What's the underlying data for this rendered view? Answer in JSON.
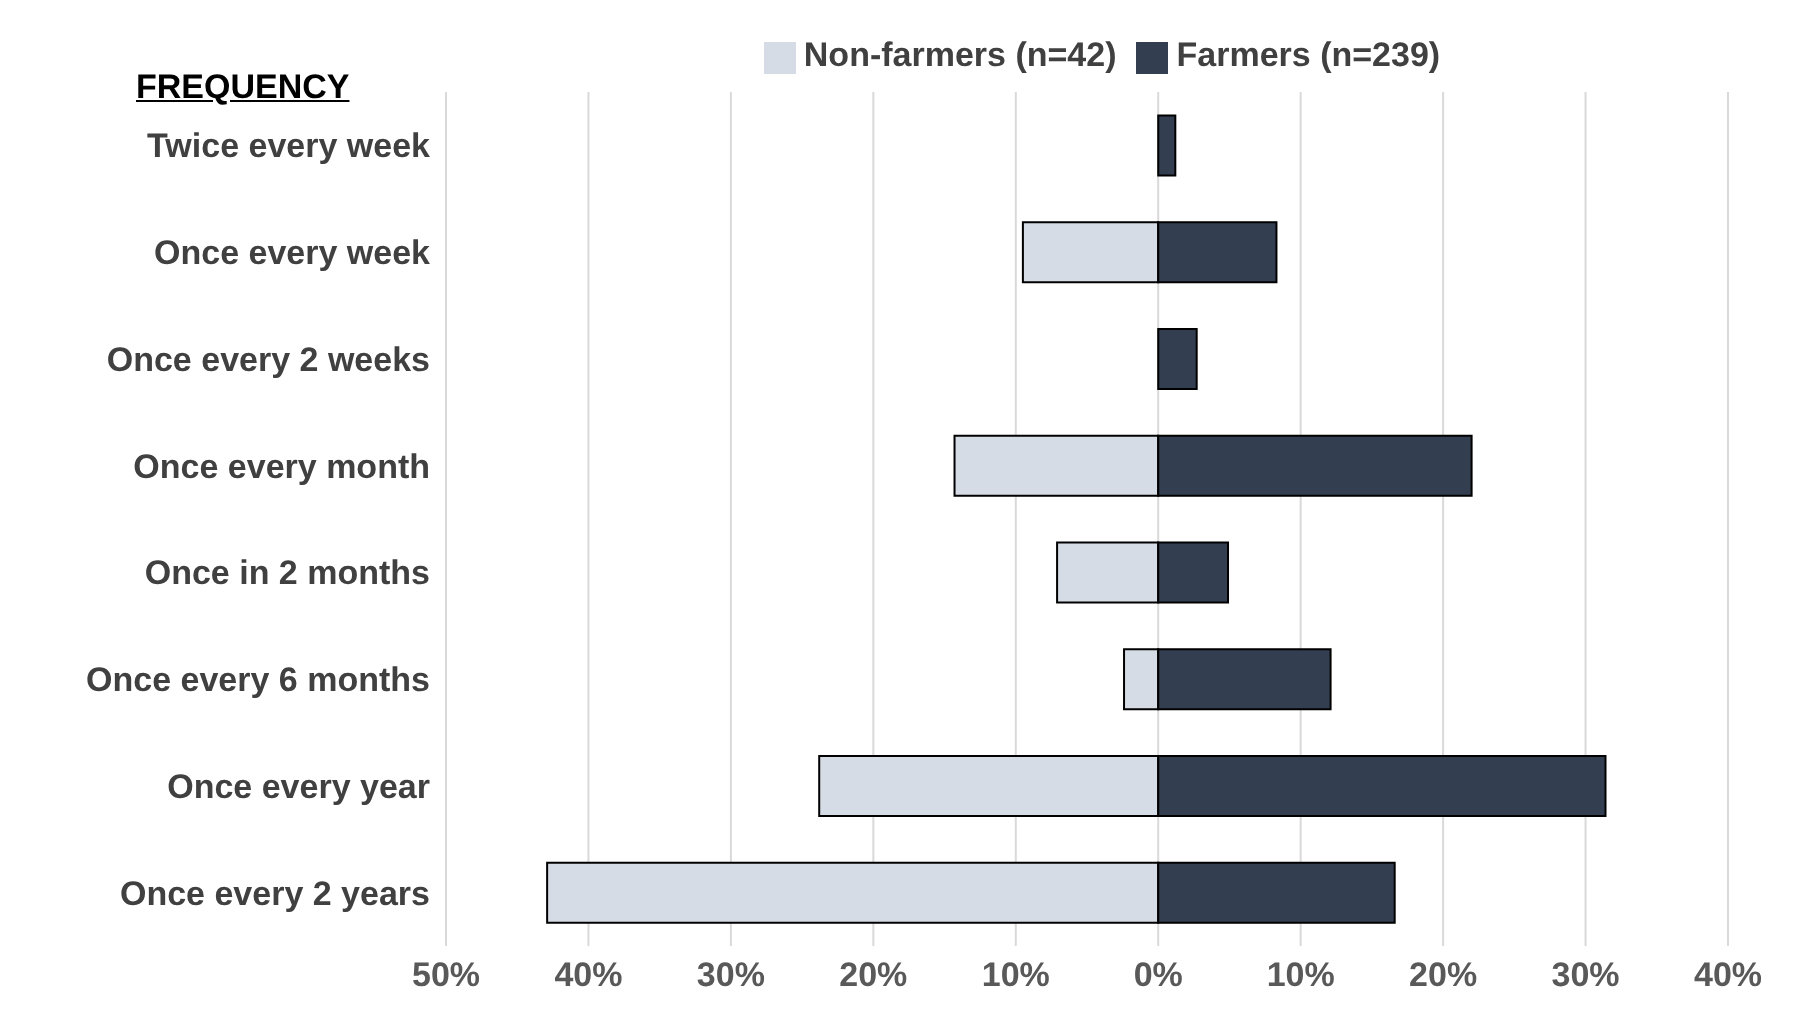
{
  "chart_data": {
    "type": "bar",
    "orientation": "horizontal",
    "stacked": true,
    "ylabel": "FREQUENCY",
    "categories": [
      "Twice every week",
      "Once every week",
      "Once every 2 weeks",
      "Once every month",
      "Once in 2 months",
      "Once every 6 months",
      "Once every year",
      "Once every 2 years"
    ],
    "series": [
      {
        "name": "Non-farmers (n=42)",
        "color": "#d6dce5",
        "values": [
          0,
          -9.5,
          0,
          -14.3,
          -7.1,
          -2.4,
          -23.8,
          -42.9
        ]
      },
      {
        "name": "Farmers (n=239)",
        "color": "#333f50",
        "values": [
          1.2,
          8.3,
          2.7,
          22,
          4.9,
          12.1,
          31.4,
          16.6
        ]
      }
    ],
    "xlim": [
      -50,
      40
    ],
    "xticks": [
      {
        "value": -50,
        "label": "50%"
      },
      {
        "value": -40,
        "label": "40%"
      },
      {
        "value": -30,
        "label": "30%"
      },
      {
        "value": -20,
        "label": "20%"
      },
      {
        "value": -10,
        "label": "10%"
      },
      {
        "value": 0,
        "label": "0%"
      },
      {
        "value": 10,
        "label": "10%"
      },
      {
        "value": 20,
        "label": "20%"
      },
      {
        "value": 30,
        "label": "30%"
      },
      {
        "value": 40,
        "label": "40%"
      }
    ],
    "grid": "x",
    "legend": "top"
  }
}
